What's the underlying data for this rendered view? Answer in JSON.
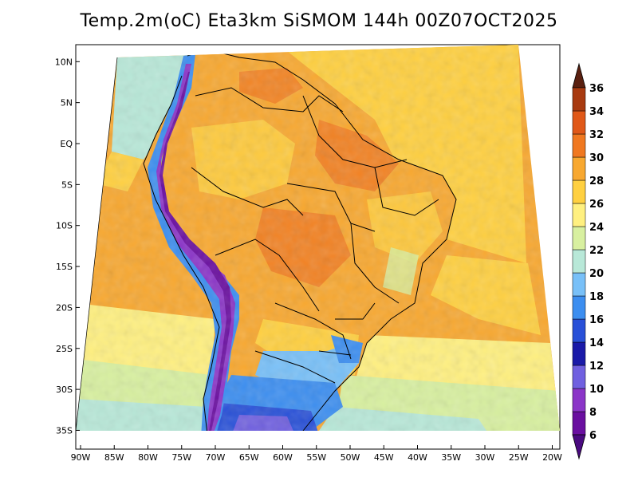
{
  "title": "Temp.2m(oC) Eta3km SiSMOM 144h 00Z07OCT2025",
  "map": {
    "lon_range": [
      -90,
      -20
    ],
    "lat_range": [
      -38,
      11
    ],
    "lat_ticks": [
      "10N",
      "5N",
      "EQ",
      "5S",
      "10S",
      "15S",
      "20S",
      "25S",
      "30S",
      "35S"
    ],
    "lat_values": [
      10,
      5,
      0,
      -5,
      -10,
      -15,
      -20,
      -25,
      -30,
      -35
    ],
    "lon_ticks": [
      "90W",
      "85W",
      "80W",
      "75W",
      "70W",
      "65W",
      "60W",
      "55W",
      "50W",
      "45W",
      "40W",
      "35W",
      "30W",
      "25W",
      "20W"
    ],
    "lon_values": [
      -90,
      -85,
      -80,
      -75,
      -70,
      -65,
      -60,
      -55,
      -50,
      -45,
      -40,
      -35,
      -30,
      -25,
      -20
    ]
  },
  "colorbar": {
    "labels": [
      "6",
      "8",
      "10",
      "12",
      "14",
      "16",
      "18",
      "20",
      "22",
      "24",
      "26",
      "28",
      "30",
      "32",
      "34",
      "36"
    ],
    "colors": [
      "#6a0fa0",
      "#8b35c8",
      "#7060e0",
      "#1a1aa8",
      "#2850d8",
      "#3c8ef0",
      "#78c0f8",
      "#b8e8d8",
      "#d8f0a0",
      "#fff080",
      "#ffd040",
      "#f8a830",
      "#f07820",
      "#e05818",
      "#a83a10",
      "#6b2a10"
    ],
    "under_color": "#4a0a80",
    "over_color": "#5a2010"
  }
}
